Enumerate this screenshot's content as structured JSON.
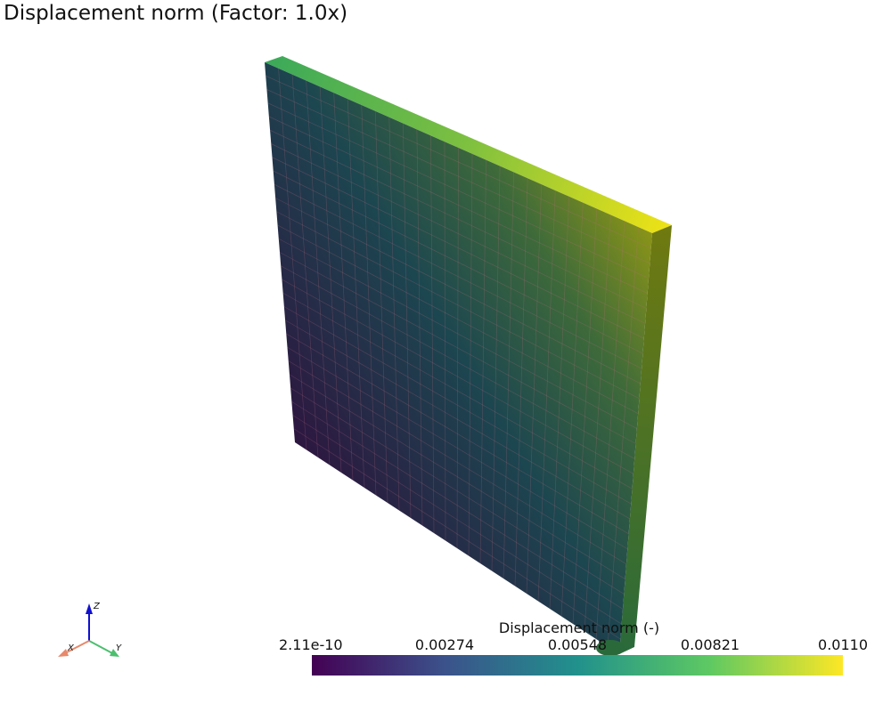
{
  "title": "Displacement norm (Factor: 1.0x)",
  "colorbar": {
    "title": "Displacement norm (-)",
    "labels": [
      "2.11e-10",
      "0.00274",
      "0.00548",
      "0.00821",
      "0.0110"
    ]
  },
  "axes": {
    "x": "X",
    "y": "Y",
    "z": "Z"
  }
}
